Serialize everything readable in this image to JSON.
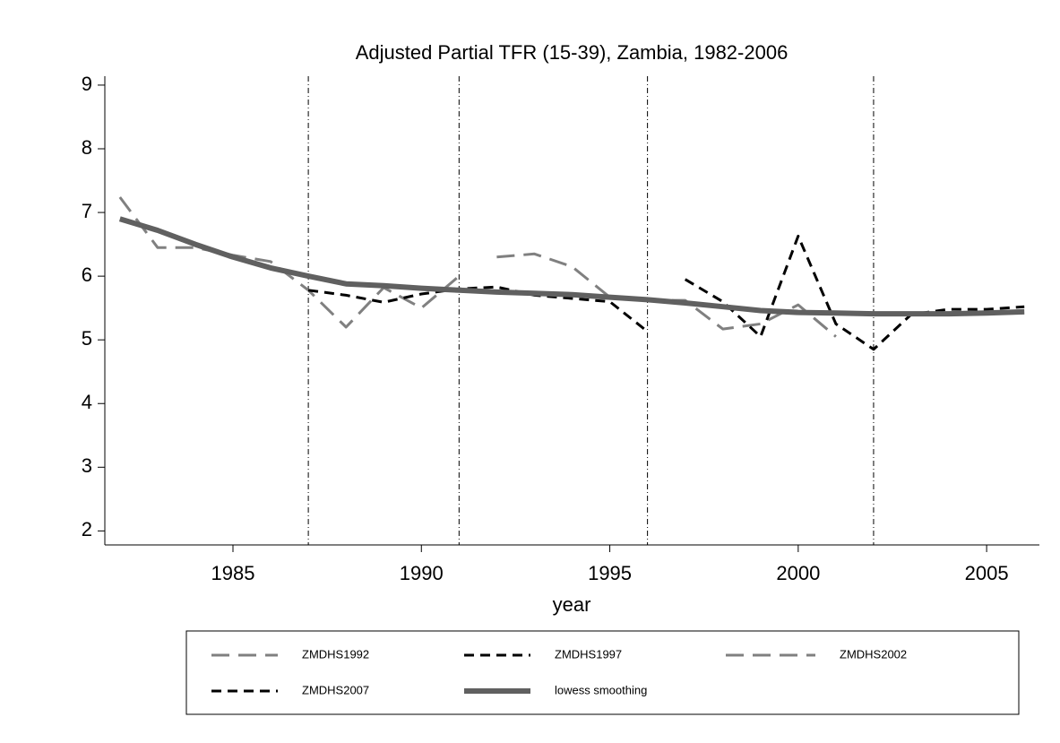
{
  "chart_data": {
    "type": "line",
    "title": "Adjusted Partial TFR (15-39), Zambia, 1982-2006",
    "x_label": "year",
    "xlim": [
      1981.6,
      2006.4
    ],
    "xticks": [
      1985,
      1990,
      1995,
      2000,
      2005
    ],
    "ylim": [
      1.78,
      9.14
    ],
    "yticks": [
      2,
      3,
      4,
      5,
      6,
      7,
      8,
      9
    ],
    "xlines": [
      1987,
      1991,
      1996,
      2002
    ],
    "series": [
      {
        "name": "ZMDHS1992",
        "color": "#808080",
        "linestyle": "long-dash",
        "x": [
          1982,
          1983,
          1984,
          1985,
          1986,
          1987,
          1988,
          1989,
          1990,
          1991
        ],
        "values": [
          7.24,
          6.45,
          6.45,
          6.33,
          6.23,
          5.78,
          5.2,
          5.82,
          5.5,
          6.0
        ]
      },
      {
        "name": "ZMDHS1997",
        "color": "#000000",
        "linestyle": "short-dash",
        "x": [
          1987,
          1988,
          1989,
          1990,
          1991,
          1992,
          1993,
          1994,
          1995,
          1996
        ],
        "values": [
          5.78,
          5.7,
          5.59,
          5.72,
          5.8,
          5.83,
          5.7,
          5.65,
          5.6,
          5.13
        ]
      },
      {
        "name": "ZMDHS2002",
        "color": "#808080",
        "linestyle": "long-dash",
        "x": [
          1992,
          1993,
          1994,
          1995,
          1996,
          1997,
          1998,
          1999,
          2000,
          2001
        ],
        "values": [
          6.3,
          6.35,
          6.15,
          5.67,
          5.62,
          5.62,
          5.17,
          5.25,
          5.55,
          5.05
        ]
      },
      {
        "name": "ZMDHS2007",
        "color": "#000000",
        "linestyle": "short-dash",
        "x": [
          1997,
          1998,
          1999,
          2000,
          2001,
          2002,
          2003,
          2004,
          2005,
          2006
        ],
        "values": [
          5.95,
          5.6,
          5.05,
          6.63,
          5.25,
          4.85,
          5.4,
          5.48,
          5.48,
          5.52
        ]
      },
      {
        "name": "lowess smoothing",
        "color": "#606060",
        "linestyle": "solid-thick",
        "x": [
          1982,
          1983,
          1984,
          1985,
          1986,
          1987,
          1988,
          1989,
          1990,
          1991,
          1992,
          1993,
          1994,
          1995,
          1996,
          1997,
          1998,
          1999,
          2000,
          2001,
          2002,
          2003,
          2004,
          2005,
          2006
        ],
        "values": [
          6.9,
          6.72,
          6.5,
          6.3,
          6.13,
          6.0,
          5.88,
          5.85,
          5.81,
          5.78,
          5.75,
          5.73,
          5.71,
          5.67,
          5.63,
          5.58,
          5.52,
          5.46,
          5.43,
          5.42,
          5.41,
          5.41,
          5.41,
          5.42,
          5.44
        ]
      }
    ]
  }
}
